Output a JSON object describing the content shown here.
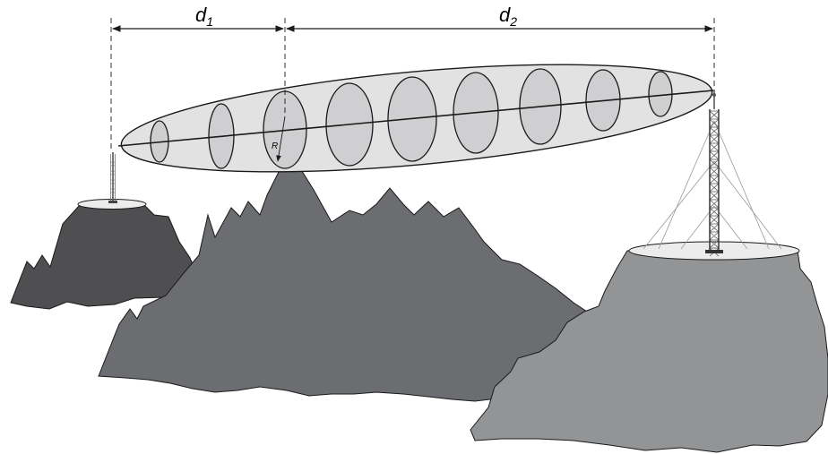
{
  "labels": {
    "d1_main": "d",
    "d1_sub": "1",
    "d2_main": "d",
    "d2_sub": "2",
    "radius": "R"
  },
  "colors": {
    "left_mountain": "#4f4f52",
    "center_mountain": "#6c6d70",
    "right_mountain": "#939496",
    "plateau_top": "#ececec",
    "ellipsoid_fill": "#e2e2e3",
    "zone_fill": "#cfcfd1",
    "line": "#1a1a1a",
    "tower": "#555555",
    "guy_wire": "#9a9a9a"
  }
}
